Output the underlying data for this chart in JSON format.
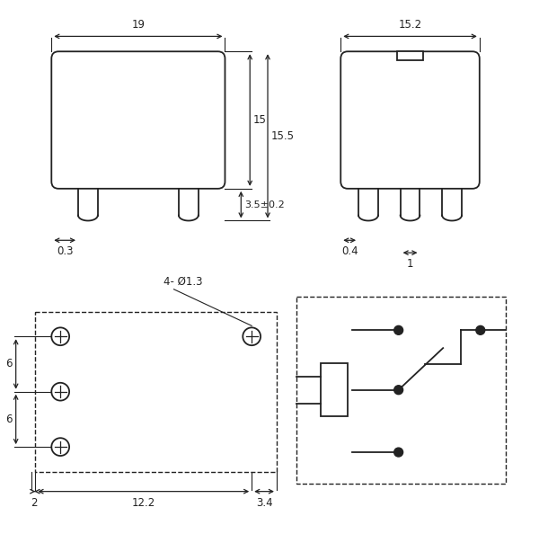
{
  "bg_color": "#ffffff",
  "line_color": "#222222",
  "font_size": 8.5,
  "fig_width": 6.0,
  "fig_height": 5.94
}
